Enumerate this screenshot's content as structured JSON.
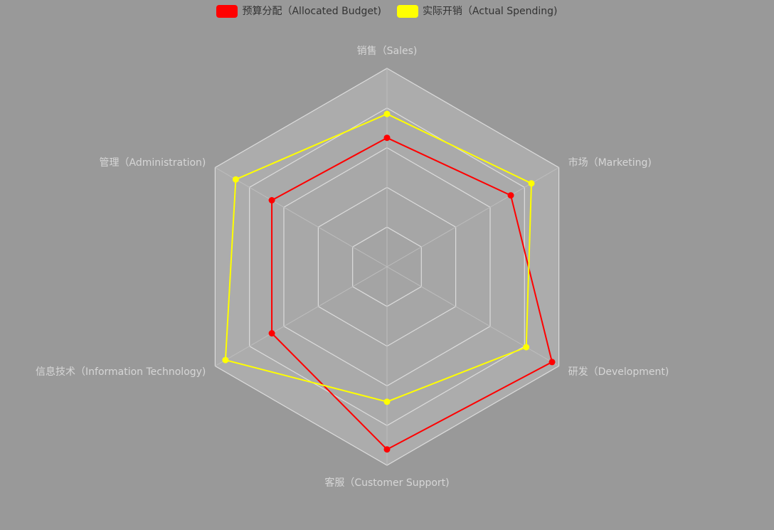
{
  "chart_data": {
    "type": "radar",
    "indicators": [
      {
        "name": "销售（Sales)",
        "max": 100
      },
      {
        "name": "市场（Marketing)",
        "max": 100
      },
      {
        "name": "研发（Development)",
        "max": 100
      },
      {
        "name": "客服（Customer Support)",
        "max": 100
      },
      {
        "name": "信息技术（Information Technology)",
        "max": 100
      },
      {
        "name": "管理（Administration)",
        "max": 100
      }
    ],
    "series": [
      {
        "name": "预算分配（Allocated Budget)",
        "color": "#ff0000",
        "values": [
          65,
          72,
          96,
          92,
          67,
          67
        ]
      },
      {
        "name": "实际开销（Actual Spending)",
        "color": "#ffff00",
        "values": [
          77,
          84,
          81,
          68,
          94,
          88
        ]
      }
    ],
    "rings": 5,
    "legend_position": "top-center"
  }
}
